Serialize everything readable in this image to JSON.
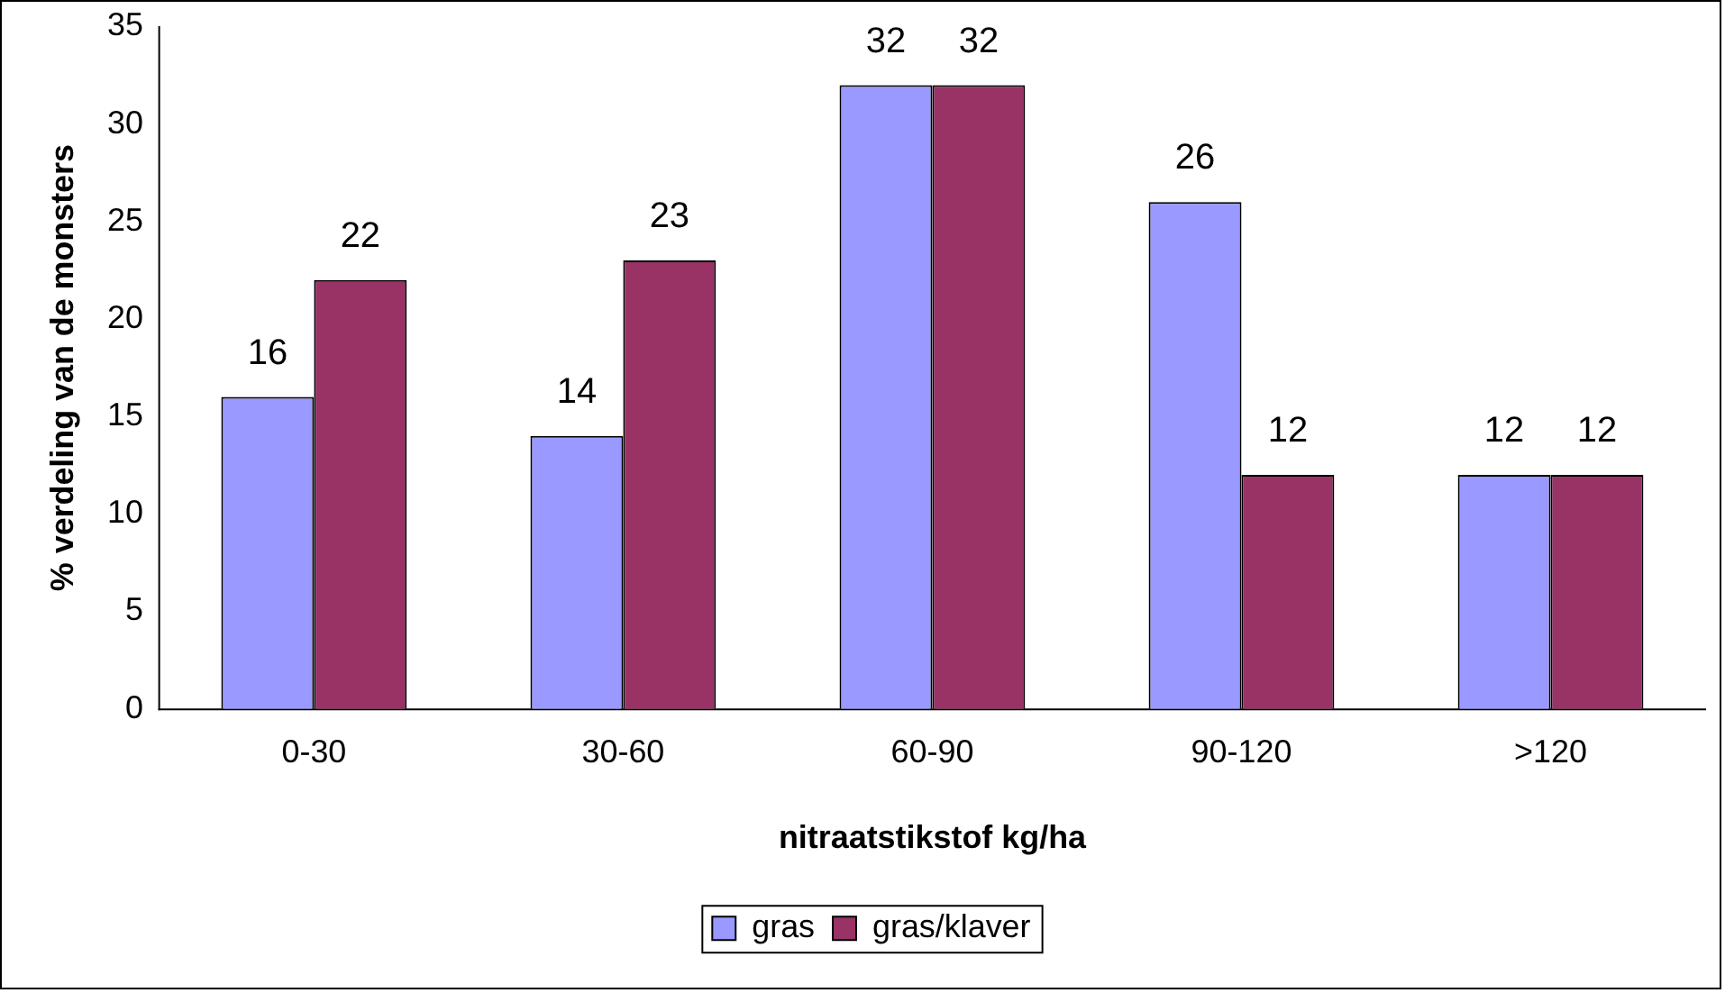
{
  "chart_data": {
    "type": "bar",
    "xlabel": "nitraatstikstof kg/ha",
    "ylabel": "% verdeling van de monsters",
    "categories": [
      "0-30",
      "30-60",
      "60-90",
      "90-120",
      ">120"
    ],
    "series": [
      {
        "name": "gras",
        "color": "#9999ff",
        "values": [
          16,
          14,
          32,
          26,
          12
        ]
      },
      {
        "name": "gras/klaver",
        "color": "#993366",
        "values": [
          22,
          23,
          32,
          12,
          12
        ]
      }
    ],
    "ylim": [
      0,
      35
    ],
    "yticks": [
      0,
      5,
      10,
      15,
      20,
      25,
      30,
      35
    ],
    "grid": false,
    "legend": "bottom",
    "data_labels": true
  }
}
